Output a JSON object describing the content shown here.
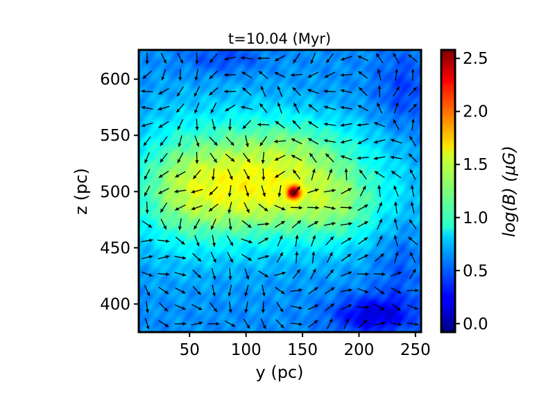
{
  "chart_data": {
    "type": "heatmap",
    "title": "t=10.04 (Myr)",
    "xlabel": "y (pc)",
    "ylabel": "z (pc)",
    "xlim": [
      5,
      255
    ],
    "ylim": [
      375,
      626
    ],
    "xticks": [
      50,
      100,
      150,
      200,
      250
    ],
    "yticks": [
      400,
      450,
      500,
      550,
      600
    ],
    "xtick_labels": [
      "50",
      "100",
      "150",
      "200",
      "250"
    ],
    "ytick_labels": [
      "400",
      "450",
      "500",
      "550",
      "600"
    ],
    "grid": false,
    "colormap": "jet",
    "colorbar": {
      "label": "log(B) (μG)",
      "range": [
        -0.08,
        2.58
      ],
      "ticks": [
        0.0,
        0.5,
        1.0,
        1.5,
        2.0,
        2.5
      ],
      "tick_labels": [
        "0.0",
        "0.5",
        "1.0",
        "1.5",
        "2.0",
        "2.5"
      ]
    },
    "field_description": "Magnetic field strength map with overlaid field-direction arrows (quiver)",
    "peak": {
      "y": 142,
      "z": 499,
      "logB": 2.4
    },
    "blobs": [
      {
        "y": 130,
        "z": 500,
        "sy": 70,
        "sz": 30,
        "amp": 0.65
      },
      {
        "y": 85,
        "z": 515,
        "sy": 55,
        "sz": 45,
        "amp": 0.35
      },
      {
        "y": 150,
        "z": 545,
        "sy": 45,
        "sz": 20,
        "amp": 0.25
      },
      {
        "y": 40,
        "z": 500,
        "sy": 30,
        "sz": 40,
        "amp": 0.25
      },
      {
        "y": 185,
        "z": 480,
        "sy": 25,
        "sz": 25,
        "amp": 0.2
      },
      {
        "y": 142,
        "z": 499,
        "sy": 4,
        "sz": 4,
        "amp": 1.2
      },
      {
        "y": 212,
        "z": 390,
        "sy": 25,
        "sz": 12,
        "amp": -0.45
      },
      {
        "y": 80,
        "z": 618,
        "sy": 25,
        "sz": 10,
        "amp": -0.2
      },
      {
        "y": 240,
        "z": 590,
        "sy": 18,
        "sz": 25,
        "amp": -0.2
      },
      {
        "y": 235,
        "z": 430,
        "sy": 15,
        "sz": 30,
        "amp": -0.15
      }
    ],
    "background_logB": 0.62
  }
}
